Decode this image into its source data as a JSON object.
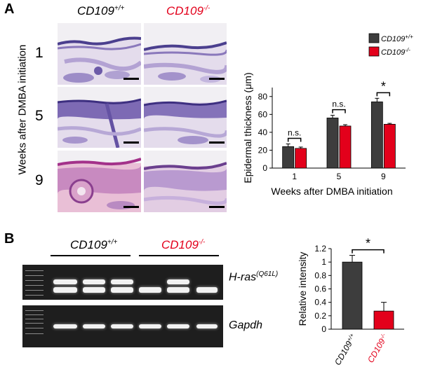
{
  "panelA": {
    "label": "A",
    "col1": {
      "base": "CD109",
      "sup": "+/+"
    },
    "col2": {
      "base": "CD109",
      "sup": "-/-"
    },
    "row_axis_label": "Weeks after DMBA initiation",
    "rows": [
      "1",
      "5",
      "9"
    ]
  },
  "panelB": {
    "label": "B",
    "group1": {
      "base": "CD109",
      "sup": "+/+"
    },
    "group2": {
      "base": "CD109",
      "sup": "-/-"
    },
    "gel1_label": {
      "base": "H-ras",
      "sup": "(Q61L)"
    },
    "gel2_label": "Gapdh"
  },
  "colors": {
    "wildtype": "#3d3d3d",
    "knockout": "#e3001b"
  },
  "chart_data": [
    {
      "type": "bar",
      "title": "",
      "categories": [
        "1",
        "5",
        "9"
      ],
      "xlabel": "Weeks after DMBA initiation",
      "ylabel": "Epidermal thickness (μm)",
      "ylim": [
        0,
        90
      ],
      "yticks": [
        "0",
        "20",
        "40",
        "60",
        "80"
      ],
      "legend": {
        "position": "top-right",
        "entries": [
          {
            "base": "CD109",
            "sup": "+/+"
          },
          {
            "base": "CD109",
            "sup": "-/-"
          }
        ]
      },
      "series": [
        {
          "values": [
            24,
            56,
            74
          ],
          "errors": [
            3,
            3,
            4
          ]
        },
        {
          "values": [
            22,
            47,
            49
          ],
          "errors": [
            1.5,
            1.5,
            1
          ]
        }
      ],
      "annotations": [
        "n.s.",
        "n.s.",
        "*"
      ]
    },
    {
      "type": "bar",
      "title": "",
      "categories": [
        {
          "base": "CD109",
          "sup": "+/+"
        },
        {
          "base": "CD109",
          "sup": "-/-"
        }
      ],
      "ylabel": "Relative intensity",
      "ylim": [
        0,
        1.2
      ],
      "yticks": [
        "0",
        "0.2",
        "0.4",
        "0.6",
        "0.8",
        "1",
        "1.2"
      ],
      "values": [
        1.0,
        0.27
      ],
      "errors": [
        0.1,
        0.13
      ],
      "annotation": "*"
    }
  ]
}
